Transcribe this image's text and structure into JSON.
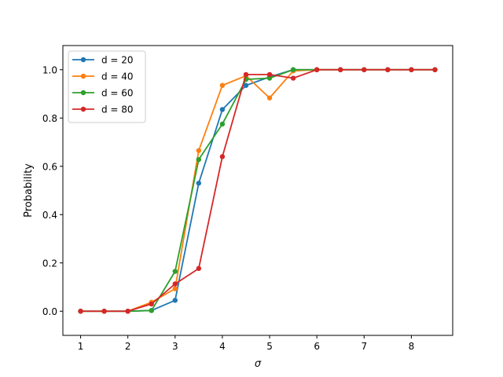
{
  "chart_data": {
    "type": "line",
    "title": "",
    "xlabel": "σ",
    "ylabel": "Probability",
    "xlim": [
      0.625,
      8.875
    ],
    "ylim": [
      -0.1,
      1.1
    ],
    "xticks": [
      1,
      2,
      3,
      4,
      5,
      6,
      7,
      8
    ],
    "yticks": [
      0.0,
      0.2,
      0.4,
      0.6,
      0.8,
      1.0
    ],
    "grid": false,
    "legend_position": "top-left",
    "x": [
      1.0,
      1.5,
      2.0,
      2.5,
      3.0,
      3.5,
      4.0,
      4.5,
      5.0,
      5.5,
      6.0,
      6.5,
      7.0,
      7.5,
      8.0,
      8.5
    ],
    "series": [
      {
        "name": "d = 20",
        "color": "#1f77b4",
        "values": [
          0.0,
          0.0,
          0.0,
          0.003,
          0.045,
          0.53,
          0.835,
          0.935,
          0.97,
          1.0,
          1.0,
          1.0,
          1.0,
          1.0,
          1.0,
          1.0
        ]
      },
      {
        "name": "d = 40",
        "color": "#ff7f0e",
        "values": [
          0.0,
          0.0,
          0.0,
          0.037,
          0.093,
          0.665,
          0.935,
          0.975,
          0.883,
          0.995,
          1.0,
          1.0,
          1.0,
          1.0,
          1.0,
          1.0
        ]
      },
      {
        "name": "d = 60",
        "color": "#2ca02c",
        "values": [
          0.0,
          0.0,
          0.0,
          0.003,
          0.165,
          0.628,
          0.775,
          0.96,
          0.965,
          1.0,
          1.0,
          1.0,
          1.0,
          1.0,
          1.0,
          1.0
        ]
      },
      {
        "name": "d = 80",
        "color": "#d62728",
        "values": [
          0.0,
          0.0,
          0.0,
          0.03,
          0.113,
          0.177,
          0.64,
          0.98,
          0.98,
          0.965,
          1.0,
          1.0,
          1.0,
          1.0,
          1.0,
          1.0
        ]
      }
    ]
  }
}
